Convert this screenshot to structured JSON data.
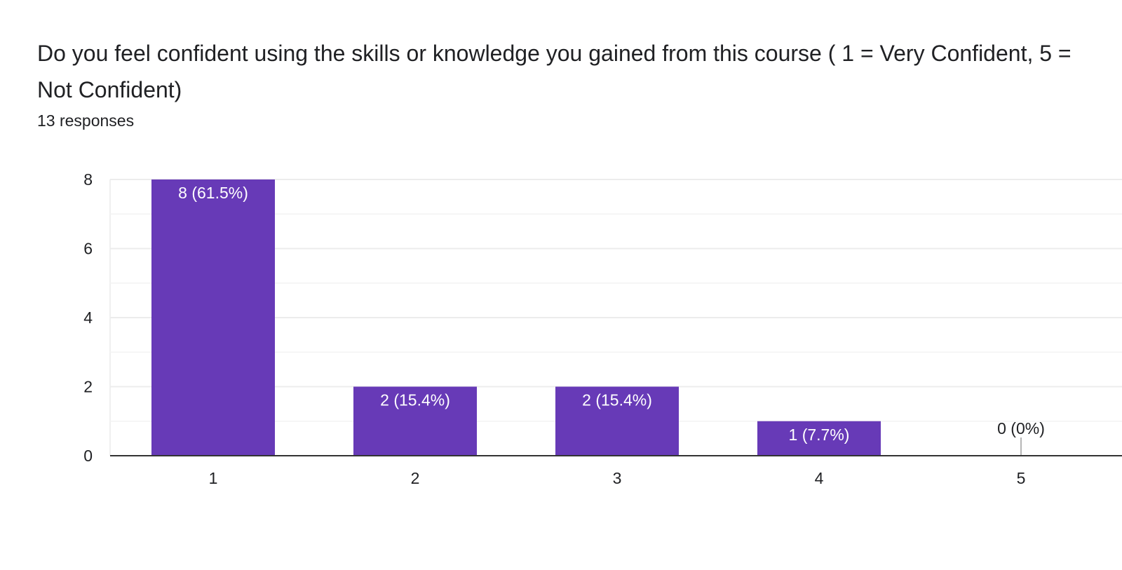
{
  "question": {
    "title": "Do you feel confident using the skills or knowledge you gained from this course ( 1 = Very Confident, 5 = Not Confident)",
    "response_count": "13 responses"
  },
  "colors": {
    "bar": "#673ab7",
    "grid": "#ececec",
    "axis": "#333333",
    "text": "#202124",
    "bar_label_inside": "#ffffff"
  },
  "chart_data": {
    "type": "bar",
    "title": "",
    "xlabel": "",
    "ylabel": "",
    "categories": [
      "1",
      "2",
      "3",
      "4",
      "5"
    ],
    "values": [
      8,
      2,
      2,
      1,
      0
    ],
    "data_labels": [
      "8 (61.5%)",
      "2 (15.4%)",
      "2 (15.4%)",
      "1 (7.7%)",
      "0 (0%)"
    ],
    "ylim": [
      0,
      8
    ],
    "y_ticks": [
      0,
      2,
      4,
      6,
      8
    ],
    "minor_gridlines": [
      1,
      3,
      5,
      7
    ],
    "grid": true,
    "legend": "none"
  }
}
